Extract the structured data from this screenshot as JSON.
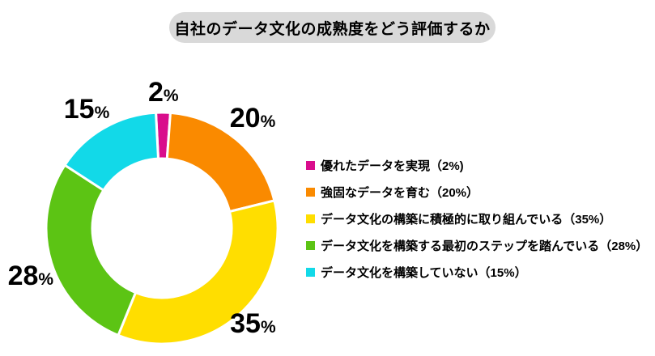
{
  "chart_data": {
    "type": "donut",
    "title": "自社のデータ文化の成熟度をどう評価するか",
    "unit": "%",
    "start_angle_deg": -3,
    "hole_ratio": 0.6,
    "legend_position": "right",
    "slices": [
      {
        "label": "優れたデータを実現",
        "value": 2,
        "color": "#d90d8c"
      },
      {
        "label": "強固なデータを育む",
        "value": 20,
        "color": "#fa8a00"
      },
      {
        "label": "データ文化の構築に積極的に取り組んでいる",
        "value": 35,
        "color": "#ffde00"
      },
      {
        "label": "データ文化を構築する最初のステップを踏んでいる",
        "value": 28,
        "color": "#5cc414"
      },
      {
        "label": "データ文化を構築していない",
        "value": 15,
        "color": "#12d9e8"
      }
    ],
    "legend_labels": [
      "優れたデータを実現（2%)",
      "強固なデータを育む（20%）",
      "データ文化の構築に積極的に取り組んでいる（35%）",
      "データ文化を構築する最初のステップを踏んでいる（28%）",
      "データ文化を構築していない（15%）"
    ]
  }
}
